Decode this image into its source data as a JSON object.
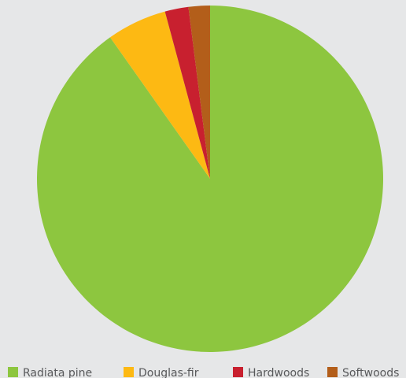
{
  "chart_data": {
    "type": "pie",
    "title": "",
    "slices": [
      {
        "label": "Radiata pine",
        "value": 90.2,
        "color": "#8dc63f"
      },
      {
        "label": "Douglas-fir",
        "value": 5.6,
        "color": "#fdb913"
      },
      {
        "label": "Hardwoods",
        "value": 2.2,
        "color": "#c8202f"
      },
      {
        "label": "Softwoods",
        "value": 2.0,
        "color": "#b35e1a"
      }
    ],
    "legend_position": "bottom",
    "start_angle": "12 o'clock",
    "direction": "clockwise"
  }
}
